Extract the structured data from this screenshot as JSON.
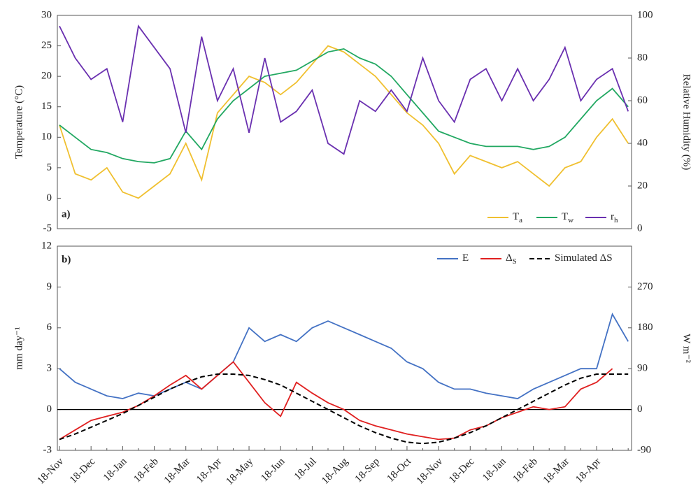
{
  "chart_data": [
    {
      "type": "line",
      "panel_label": "a)",
      "y_label": "Temperature (°C)",
      "y2_label": "Relative Humidity (%)",
      "ylim": [
        -5,
        30
      ],
      "yticks": [
        -5,
        0,
        5,
        10,
        15,
        20,
        25,
        30
      ],
      "y2lim": [
        0,
        100
      ],
      "y2ticks": [
        0,
        20,
        40,
        60,
        80,
        100
      ],
      "legend": "lower right",
      "series": [
        {
          "name": "Ta",
          "color": "#f0c030",
          "values": [
            12,
            4,
            3,
            5,
            1,
            0,
            2,
            4,
            9,
            3,
            14,
            17,
            20,
            19,
            17,
            19,
            22,
            25,
            24,
            22,
            20,
            17,
            14,
            12,
            9,
            4,
            7,
            6,
            5,
            6,
            4,
            2,
            5,
            6,
            10,
            13,
            9
          ]
        },
        {
          "name": "Tw",
          "color": "#22a862",
          "values": [
            12,
            10,
            8,
            7.5,
            6.5,
            6,
            5.8,
            6.5,
            11,
            8,
            13,
            16,
            18,
            20,
            20.5,
            21,
            22.5,
            24,
            24.5,
            23,
            22,
            20,
            17,
            14,
            11,
            10,
            9,
            8.5,
            8.5,
            8.5,
            8,
            8.5,
            10,
            13,
            16,
            18,
            15
          ]
        },
        {
          "name": "rh",
          "color": "#6a30b0",
          "axis": "y2",
          "values": [
            95,
            80,
            70,
            75,
            50,
            95,
            85,
            75,
            45,
            90,
            60,
            75,
            45,
            80,
            50,
            55,
            65,
            40,
            35,
            60,
            55,
            65,
            55,
            80,
            60,
            50,
            70,
            75,
            60,
            75,
            60,
            70,
            85,
            60,
            70,
            75,
            55
          ]
        }
      ]
    },
    {
      "type": "line",
      "panel_label": "b)",
      "y_label": "mm day⁻¹",
      "y2_label": "W m⁻²",
      "categories": [
        "18-Nov",
        null,
        "18-Dec",
        null,
        "18-Jan",
        null,
        "18-Feb",
        null,
        "18-Mar",
        null,
        "18-Apr",
        null,
        "18-May",
        null,
        "18-Jun",
        null,
        "18-Jul",
        null,
        "18-Aug",
        null,
        "18-Sep",
        null,
        "18-Oct",
        null,
        "18-Nov",
        null,
        "18-Dec",
        null,
        "18-Jan",
        null,
        "18-Feb",
        null,
        "18-Mar",
        null,
        "18-Apr",
        null,
        null
      ],
      "ylim": [
        -3,
        12
      ],
      "yticks": [
        -3,
        0,
        3,
        6,
        9,
        12
      ],
      "y2lim": [
        -90,
        360
      ],
      "y2ticks": [
        -90,
        0,
        90,
        180,
        270
      ],
      "zero_line": true,
      "legend": "upper right",
      "series": [
        {
          "name": "E",
          "color": "#4472c4",
          "values": [
            3,
            2,
            1.5,
            1,
            0.8,
            1.2,
            1,
            1.5,
            2,
            1.5,
            2.5,
            3.5,
            6,
            5,
            5.5,
            5,
            6,
            6.5,
            6,
            5.5,
            5,
            4.5,
            3.5,
            3,
            2,
            1.5,
            1.5,
            1.2,
            1,
            0.8,
            1.5,
            2,
            2.5,
            3,
            3,
            7,
            5
          ]
        },
        {
          "name": "ΔS",
          "color": "#e02020",
          "values": [
            -2.2,
            -1.5,
            -0.8,
            -0.5,
            -0.2,
            0.3,
            1,
            1.8,
            2.5,
            1.5,
            2.5,
            3.5,
            2,
            0.5,
            -0.5,
            2,
            1.2,
            0.5,
            0,
            -0.8,
            -1.2,
            -1.5,
            -1.8,
            -2,
            -2.2,
            -2.1,
            -1.5,
            -1.2,
            -0.6,
            -0.2,
            0.2,
            0,
            0.2,
            1.5,
            2,
            3,
            null
          ]
        },
        {
          "name": "Simulated ΔS",
          "color": "#000000",
          "dashed": true,
          "values": [
            -2.2,
            -1.8,
            -1.3,
            -0.8,
            -0.3,
            0.3,
            0.9,
            1.5,
            2,
            2.4,
            2.6,
            2.6,
            2.5,
            2.2,
            1.8,
            1.2,
            0.6,
            0,
            -0.6,
            -1.2,
            -1.7,
            -2.1,
            -2.4,
            -2.5,
            -2.4,
            -2.1,
            -1.7,
            -1.2,
            -0.6,
            0,
            0.6,
            1.2,
            1.8,
            2.3,
            2.6,
            2.6,
            2.6
          ]
        }
      ]
    }
  ]
}
